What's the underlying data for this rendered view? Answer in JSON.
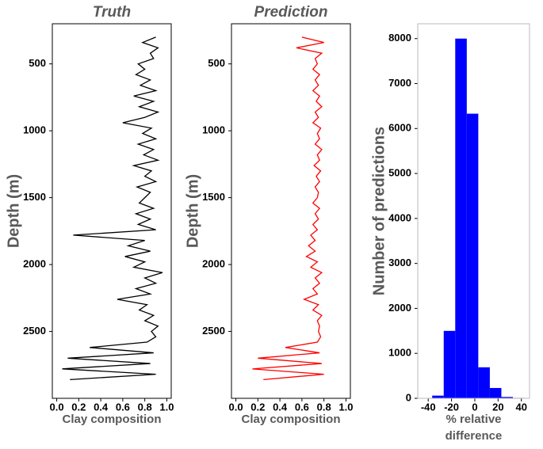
{
  "chart_data": [
    {
      "type": "line",
      "orientation": "vertical",
      "title": "Truth",
      "xlabel": "Clay composition",
      "ylabel": "Depth (m)",
      "xlim": [
        -0.04,
        1.04
      ],
      "xticks": [
        {
          "value": 0,
          "label": "0.0"
        },
        0.2,
        0.4,
        0.6,
        0.8,
        {
          "value": 1,
          "label": "1.0"
        }
      ],
      "ylim": [
        3000,
        200
      ],
      "yticks": [
        500,
        1000,
        1500,
        2000,
        2500
      ],
      "depth": [
        300,
        340,
        380,
        420,
        460,
        500,
        540,
        580,
        620,
        660,
        700,
        740,
        780,
        820,
        860,
        900,
        940,
        980,
        1020,
        1060,
        1100,
        1140,
        1180,
        1220,
        1260,
        1300,
        1340,
        1380,
        1420,
        1460,
        1500,
        1540,
        1580,
        1620,
        1660,
        1700,
        1740,
        1780,
        1820,
        1860,
        1900,
        1940,
        1980,
        2020,
        2060,
        2100,
        2140,
        2180,
        2220,
        2260,
        2300,
        2340,
        2380,
        2420,
        2460,
        2500,
        2540,
        2580,
        2620,
        2660,
        2700,
        2740,
        2780,
        2820,
        2860
      ],
      "series": [
        {
          "color": "#000000",
          "values": [
            0.9,
            0.78,
            0.92,
            0.85,
            0.88,
            0.74,
            0.8,
            0.72,
            0.85,
            0.76,
            0.9,
            0.7,
            0.88,
            0.75,
            0.92,
            0.8,
            0.6,
            0.86,
            0.78,
            0.9,
            0.74,
            0.88,
            0.79,
            0.92,
            0.7,
            0.86,
            0.8,
            0.9,
            0.73,
            0.85,
            0.8,
            0.75,
            0.88,
            0.72,
            0.85,
            0.74,
            0.9,
            0.15,
            0.8,
            0.65,
            0.85,
            0.62,
            0.8,
            0.7,
            0.96,
            0.8,
            0.9,
            0.72,
            0.85,
            0.55,
            0.82,
            0.75,
            0.88,
            0.8,
            0.92,
            0.86,
            0.9,
            0.82,
            0.3,
            0.88,
            0.1,
            0.85,
            0.05,
            0.9,
            0.12
          ]
        }
      ]
    },
    {
      "type": "line",
      "orientation": "vertical",
      "title": "Prediction",
      "xlabel": "Clay composition",
      "ylabel": "Depth (m)",
      "xlim": [
        -0.04,
        1.04
      ],
      "xticks": [
        {
          "value": 0,
          "label": "0.0"
        },
        0.2,
        0.4,
        0.6,
        0.8,
        {
          "value": 1,
          "label": "1.0"
        }
      ],
      "ylim": [
        3000,
        200
      ],
      "yticks": [
        500,
        1000,
        1500,
        2000,
        2500
      ],
      "depth": [
        300,
        340,
        380,
        420,
        460,
        500,
        540,
        580,
        620,
        660,
        700,
        740,
        780,
        820,
        860,
        900,
        940,
        980,
        1020,
        1060,
        1100,
        1140,
        1180,
        1220,
        1260,
        1300,
        1340,
        1380,
        1420,
        1460,
        1500,
        1540,
        1580,
        1620,
        1660,
        1700,
        1740,
        1780,
        1820,
        1860,
        1900,
        1940,
        1980,
        2020,
        2060,
        2100,
        2140,
        2180,
        2220,
        2260,
        2300,
        2340,
        2380,
        2420,
        2460,
        2500,
        2540,
        2580,
        2620,
        2660,
        2700,
        2740,
        2780,
        2820,
        2860
      ],
      "series": [
        {
          "color": "#ff0000",
          "values": [
            0.6,
            0.8,
            0.55,
            0.78,
            0.72,
            0.74,
            0.7,
            0.76,
            0.72,
            0.75,
            0.7,
            0.76,
            0.73,
            0.78,
            0.72,
            0.75,
            0.7,
            0.77,
            0.74,
            0.76,
            0.72,
            0.78,
            0.74,
            0.76,
            0.71,
            0.77,
            0.73,
            0.76,
            0.72,
            0.75,
            0.74,
            0.7,
            0.76,
            0.72,
            0.75,
            0.7,
            0.74,
            0.68,
            0.72,
            0.66,
            0.72,
            0.64,
            0.74,
            0.68,
            0.78,
            0.72,
            0.76,
            0.7,
            0.74,
            0.62,
            0.75,
            0.7,
            0.78,
            0.74,
            0.76,
            0.75,
            0.77,
            0.74,
            0.45,
            0.76,
            0.2,
            0.78,
            0.15,
            0.8,
            0.25
          ]
        }
      ]
    },
    {
      "type": "histogram",
      "ylabel": "Number of predictions",
      "xlabel_lines": [
        "% relative",
        "difference"
      ],
      "color": "#0000ff",
      "xlim": [
        -49,
        47
      ],
      "xticks": [
        -40,
        -20,
        0,
        20,
        40
      ],
      "ylim": [
        0,
        8330
      ],
      "yticks": [
        0,
        1000,
        2000,
        3000,
        4000,
        5000,
        6000,
        7000,
        8000
      ],
      "bins": [
        -46.5,
        -36.6,
        -26.7,
        -16.8,
        -6.9,
        3.0,
        12.9,
        22.8,
        32.7,
        42.6
      ],
      "counts": [
        5,
        60,
        1500,
        8000,
        6330,
        690,
        230,
        30,
        10
      ]
    }
  ]
}
